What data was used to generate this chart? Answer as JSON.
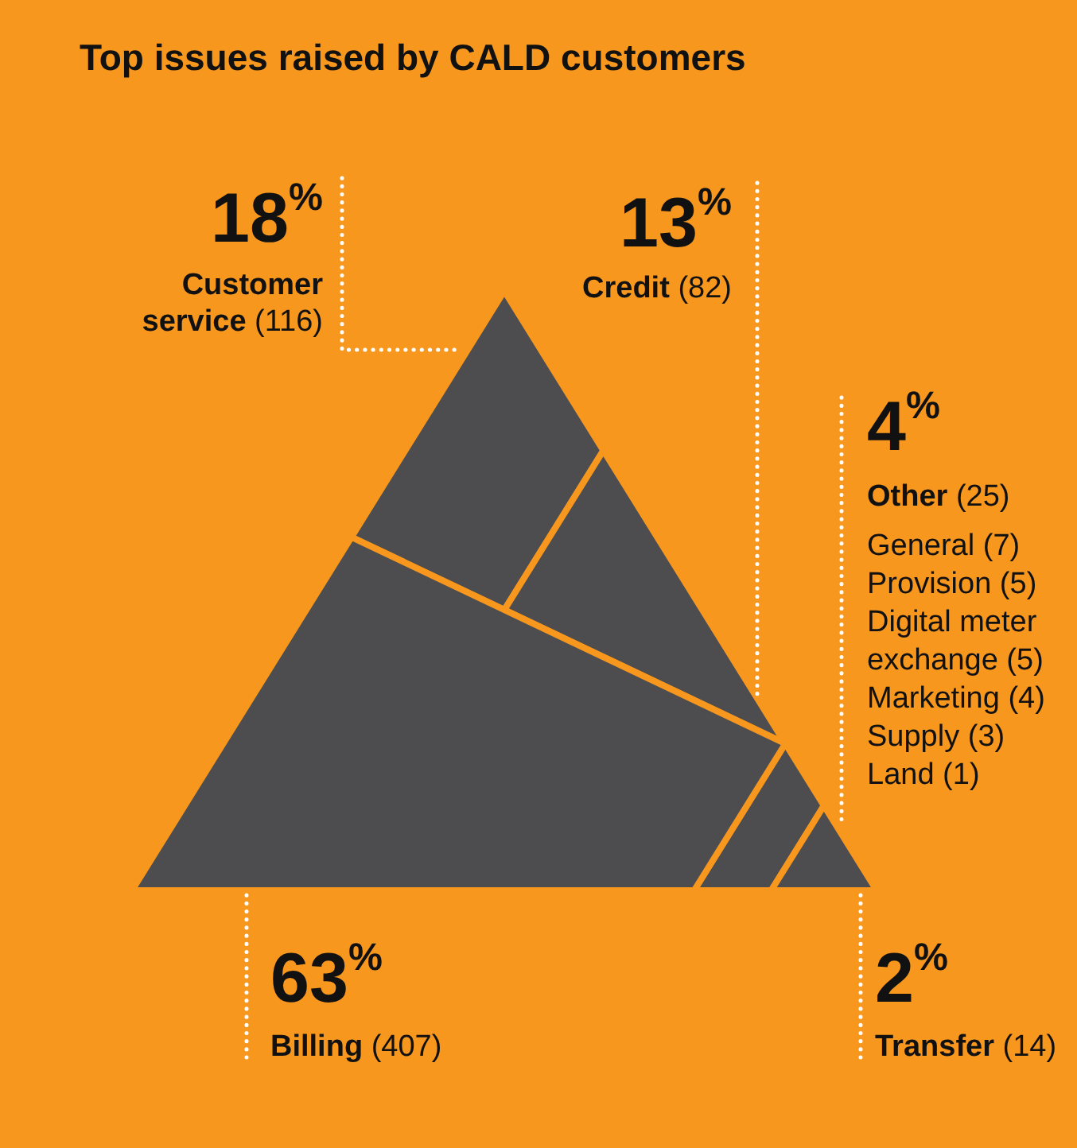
{
  "chart_data": {
    "type": "other",
    "title": "Top issues raised by CALD customers",
    "categories": [
      "Customer service (116)",
      "Credit (82)",
      "Other (25)",
      "Billing (407)",
      "Transfer (14)"
    ],
    "values": [
      18,
      13,
      4,
      63,
      2
    ],
    "value_labels": [
      "18$^{%}$",
      "13$^{%}$",
      "4$^{%}$",
      "63$^{%}$",
      "2$^{%}$"
    ],
    "colors": [
      "#4d4d4f",
      "#4d4d4f",
      "#4d4d4f",
      "#4d4d4f",
      "#4d4d4f"
    ],
    "annotations": [
      "General (7)",
      "Provision (5)",
      "Digital meter exchange (5)",
      "Marketing (4)",
      "Supply (3)",
      "Land (1)"
    ]
  }
}
